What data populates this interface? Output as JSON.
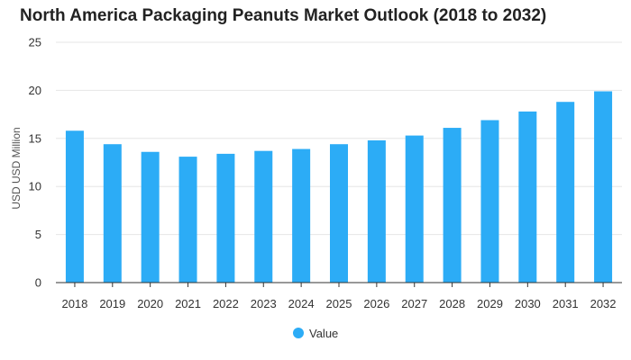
{
  "chart_data": {
    "type": "bar",
    "title": "North America Packaging Peanuts Market Outlook (2018 to 2032)",
    "xlabel": "",
    "ylabel": "USD USD Million",
    "ylim": [
      0,
      25
    ],
    "yticks": [
      0,
      5,
      10,
      15,
      20,
      25
    ],
    "grid": true,
    "legend_position": "bottom",
    "categories": [
      "2018",
      "2019",
      "2020",
      "2021",
      "2022",
      "2023",
      "2024",
      "2025",
      "2026",
      "2027",
      "2028",
      "2029",
      "2030",
      "2031",
      "2032"
    ],
    "series": [
      {
        "name": "Value",
        "color": "#2cacf6",
        "values": [
          15.8,
          14.4,
          13.6,
          13.1,
          13.4,
          13.7,
          13.9,
          14.4,
          14.8,
          15.3,
          16.1,
          16.9,
          17.8,
          18.8,
          19.9
        ]
      }
    ]
  }
}
